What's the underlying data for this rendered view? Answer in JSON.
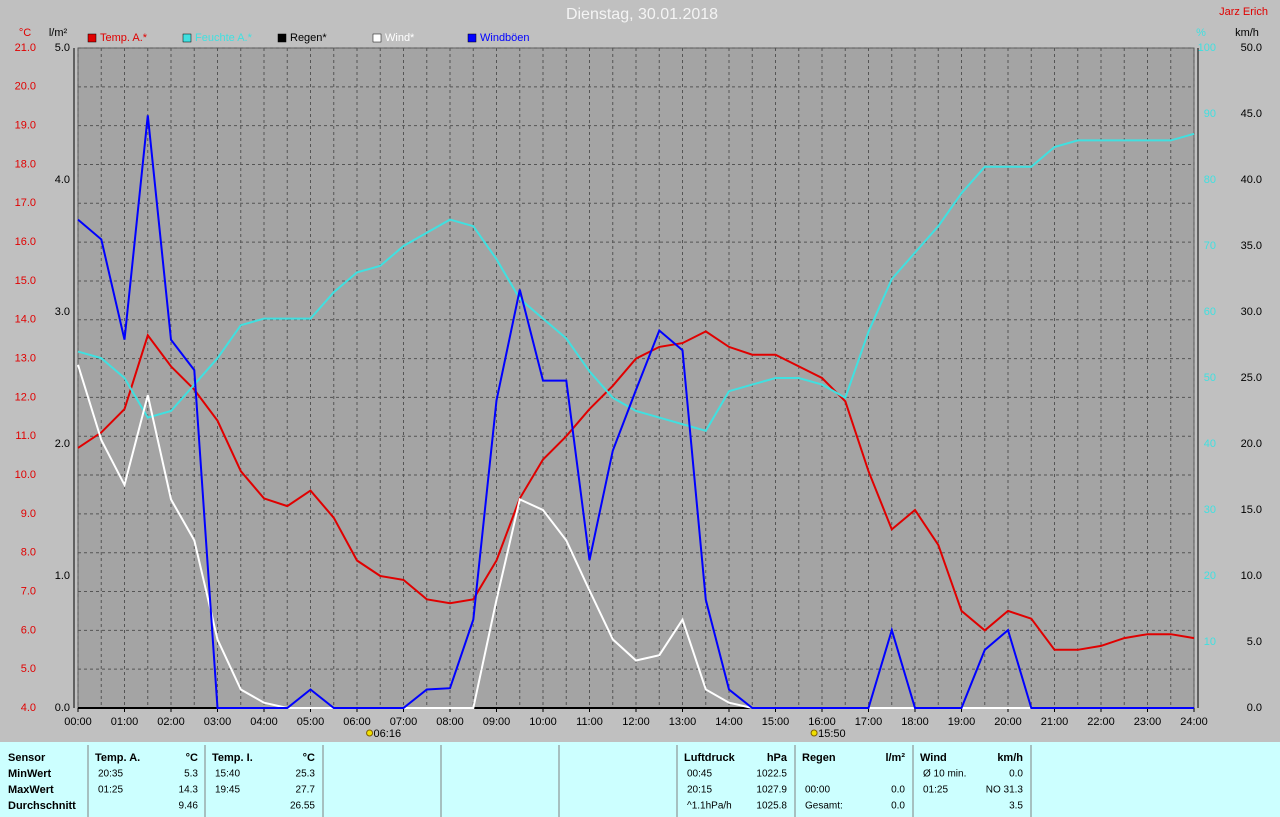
{
  "chart_data": {
    "type": "line",
    "title": "Dienstag, 30.01.2018",
    "author": "Jarz Erich",
    "y_label": "°C",
    "y2_label": "l/m²",
    "y3_label": "%",
    "y4_label": "km/h",
    "xlim": [
      0,
      24
    ],
    "xticks": [
      {
        "value": 0,
        "label": "00:00"
      },
      {
        "value": 1,
        "label": "01:00"
      },
      {
        "value": 2,
        "label": "02:00"
      },
      {
        "value": 3,
        "label": "03:00"
      },
      {
        "value": 4,
        "label": "04:00"
      },
      {
        "value": 5,
        "label": "05:00"
      },
      {
        "value": 6,
        "label": "06:00"
      },
      {
        "value": 7,
        "label": "07:00"
      },
      {
        "value": 8,
        "label": "08:00"
      },
      {
        "value": 9,
        "label": "09:00"
      },
      {
        "value": 10,
        "label": "10:00"
      },
      {
        "value": 11,
        "label": "11:00"
      },
      {
        "value": 12,
        "label": "12:00"
      },
      {
        "value": 13,
        "label": "13:00"
      },
      {
        "value": 14,
        "label": "14:00"
      },
      {
        "value": 15,
        "label": "15:00"
      },
      {
        "value": 16,
        "label": "16:00"
      },
      {
        "value": 17,
        "label": "17:00"
      },
      {
        "value": 18,
        "label": "18:00"
      },
      {
        "value": 19,
        "label": "19:00"
      },
      {
        "value": 20,
        "label": "20:00"
      },
      {
        "value": 21,
        "label": "21:00"
      },
      {
        "value": 22,
        "label": "22:00"
      },
      {
        "value": 23,
        "label": "23:00"
      },
      {
        "value": 24,
        "label": "24:00"
      }
    ],
    "ylim": [
      4,
      21
    ],
    "yticks": [
      {
        "value": 4,
        "label": "4.0"
      },
      {
        "value": 5,
        "label": "5.0"
      },
      {
        "value": 6,
        "label": "6.0"
      },
      {
        "value": 7,
        "label": "7.0"
      },
      {
        "value": 8,
        "label": "8.0"
      },
      {
        "value": 9,
        "label": "9.0"
      },
      {
        "value": 10,
        "label": "10.0"
      },
      {
        "value": 11,
        "label": "11.0"
      },
      {
        "value": 12,
        "label": "12.0"
      },
      {
        "value": 13,
        "label": "13.0"
      },
      {
        "value": 14,
        "label": "14.0"
      },
      {
        "value": 15,
        "label": "15.0"
      },
      {
        "value": 16,
        "label": "16.0"
      },
      {
        "value": 17,
        "label": "17.0"
      },
      {
        "value": 18,
        "label": "18.0"
      },
      {
        "value": 19,
        "label": "19.0"
      },
      {
        "value": 20,
        "label": "20.0"
      },
      {
        "value": 21,
        "label": "21.0"
      }
    ],
    "y2lim": [
      0,
      5
    ],
    "y2ticks": [
      {
        "value": 0,
        "label": "0.0"
      },
      {
        "value": 1,
        "label": "1.0"
      },
      {
        "value": 2,
        "label": "2.0"
      },
      {
        "value": 3,
        "label": "3.0"
      },
      {
        "value": 4,
        "label": "4.0"
      },
      {
        "value": 5,
        "label": "5.0"
      }
    ],
    "y3lim": [
      0,
      100
    ],
    "y3ticks": [
      10,
      20,
      30,
      40,
      50,
      60,
      70,
      80,
      90,
      100
    ],
    "y4lim": [
      0,
      50
    ],
    "y4ticks": [
      {
        "value": 0,
        "label": "0.0"
      },
      {
        "value": 5,
        "label": "5.0"
      },
      {
        "value": 10,
        "label": "10.0"
      },
      {
        "value": 15,
        "label": "15.0"
      },
      {
        "value": 20,
        "label": "20.0"
      },
      {
        "value": 25,
        "label": "25.0"
      },
      {
        "value": 30,
        "label": "30.0"
      },
      {
        "value": 35,
        "label": "35.0"
      },
      {
        "value": 40,
        "label": "40.0"
      },
      {
        "value": 45,
        "label": "45.0"
      },
      {
        "value": 50,
        "label": "50.0"
      }
    ],
    "grid": true,
    "annotations": [
      {
        "value": 6.27,
        "label": "06:16"
      },
      {
        "value": 15.83,
        "label": "15:50"
      }
    ],
    "x": [
      0,
      0.5,
      1,
      1.5,
      2,
      2.5,
      3,
      3.5,
      4,
      4.5,
      5,
      5.5,
      6,
      6.5,
      7,
      7.5,
      8,
      8.5,
      9,
      9.5,
      10,
      10.5,
      11,
      11.5,
      12,
      12.5,
      13,
      13.5,
      14,
      14.5,
      15,
      15.5,
      16,
      16.5,
      17,
      17.5,
      18,
      18.5,
      19,
      19.5,
      20,
      20.5,
      21,
      21.5,
      22,
      22.5,
      23,
      23.5,
      24
    ],
    "series": [
      {
        "name": "Temp. A.*",
        "color": "#e00000",
        "axis": "y",
        "values": [
          10.7,
          11.1,
          11.7,
          13.6,
          12.8,
          12.2,
          11.4,
          10.1,
          9.4,
          9.2,
          9.6,
          8.9,
          7.8,
          7.4,
          7.3,
          6.8,
          6.7,
          6.8,
          7.8,
          9.4,
          10.4,
          11.0,
          11.7,
          12.3,
          13.0,
          13.3,
          13.4,
          13.7,
          13.3,
          13.1,
          13.1,
          12.8,
          12.5,
          11.9,
          10.1,
          8.6,
          9.1,
          8.2,
          6.5,
          6.0,
          6.5,
          6.3,
          5.5,
          5.5,
          5.6,
          5.8,
          5.9,
          5.9,
          5.8
        ]
      },
      {
        "name": "Feuchte A.*",
        "color": "#40e0e0",
        "axis": "y3",
        "values": [
          54,
          53,
          50,
          44,
          45,
          49,
          53,
          58,
          59,
          59,
          59,
          63,
          66,
          67,
          70,
          72,
          74,
          73,
          68,
          62,
          59,
          56,
          51,
          47,
          45,
          44,
          43,
          42,
          48,
          49,
          50,
          50,
          49,
          47,
          57,
          65,
          69,
          73,
          78,
          82,
          82,
          82,
          85,
          86,
          86,
          86,
          86,
          86,
          87
        ]
      },
      {
        "name": "Regen*",
        "color": "#000000",
        "axis": "y2",
        "values": [
          0,
          0,
          0,
          0,
          0,
          0,
          0,
          0,
          0,
          0,
          0,
          0,
          0,
          0,
          0,
          0,
          0,
          0,
          0,
          0,
          0,
          0,
          0,
          0,
          0,
          0,
          0,
          0,
          0,
          0,
          0,
          0,
          0,
          0,
          0,
          0,
          0,
          0,
          0,
          0,
          0,
          0,
          0,
          0,
          0,
          0,
          0,
          0,
          0
        ]
      },
      {
        "name": "Wind*",
        "color": "#ffffff",
        "axis": "y4",
        "values": [
          26,
          20.3,
          16.9,
          23.7,
          15.8,
          12.7,
          5.2,
          1.4,
          0.4,
          0,
          0,
          0,
          0,
          0,
          0,
          0,
          0,
          0,
          8.2,
          15.8,
          15,
          12.7,
          8.9,
          5.2,
          3.6,
          4,
          6.7,
          1.4,
          0.4,
          0,
          0,
          0,
          0,
          0,
          0,
          0,
          0,
          0,
          0,
          0,
          0,
          0,
          0,
          0,
          0,
          0,
          0,
          0,
          0
        ]
      },
      {
        "name": "Windböen",
        "color": "#0000ff",
        "axis": "y4",
        "values": [
          37,
          35.5,
          27.9,
          44.9,
          27.9,
          25.6,
          0,
          0,
          0,
          0,
          1.4,
          0,
          0,
          0,
          0,
          1.4,
          1.5,
          6.7,
          23.3,
          31.7,
          24.8,
          24.8,
          11.2,
          19.5,
          24.1,
          28.6,
          27.1,
          8.2,
          1.4,
          0,
          0,
          0,
          0,
          0,
          0,
          5.9,
          0,
          0,
          0,
          4.4,
          5.9,
          0,
          0,
          0,
          0,
          0,
          0,
          0,
          0
        ]
      }
    ]
  },
  "stats": {
    "row_labels": [
      "Sensor",
      "MinWert",
      "MaxWert",
      "Durchschnitt"
    ],
    "groups": [
      {
        "title": "Temp. A.",
        "unit": "°C",
        "rows": [
          [
            "20:35",
            "5.3"
          ],
          [
            "01:25",
            "14.3"
          ],
          [
            null,
            "9.46"
          ]
        ]
      },
      {
        "title": "Temp. I.",
        "unit": "°C",
        "rows": [
          [
            "15:40",
            "25.3"
          ],
          [
            "19:45",
            "27.7"
          ],
          [
            null,
            "26.55"
          ]
        ]
      },
      {
        "title": "Luftdruck",
        "unit": "hPa",
        "rows": [
          [
            "00:45",
            "1022.5"
          ],
          [
            "20:15",
            "1027.9"
          ],
          [
            "^1.1hPa/h",
            "1025.8"
          ]
        ]
      },
      {
        "title": "Regen",
        "unit": "l/m²",
        "rows": [
          [
            null,
            null
          ],
          [
            "00:00",
            "0.0"
          ],
          [
            "Gesamt:",
            "0.0"
          ]
        ]
      },
      {
        "title": "Wind",
        "unit": "km/h",
        "rows": [
          [
            "Ø 10 min.",
            "0.0"
          ],
          [
            "01:25",
            "NO 31.3"
          ],
          [
            null,
            "3.5"
          ]
        ]
      }
    ]
  }
}
